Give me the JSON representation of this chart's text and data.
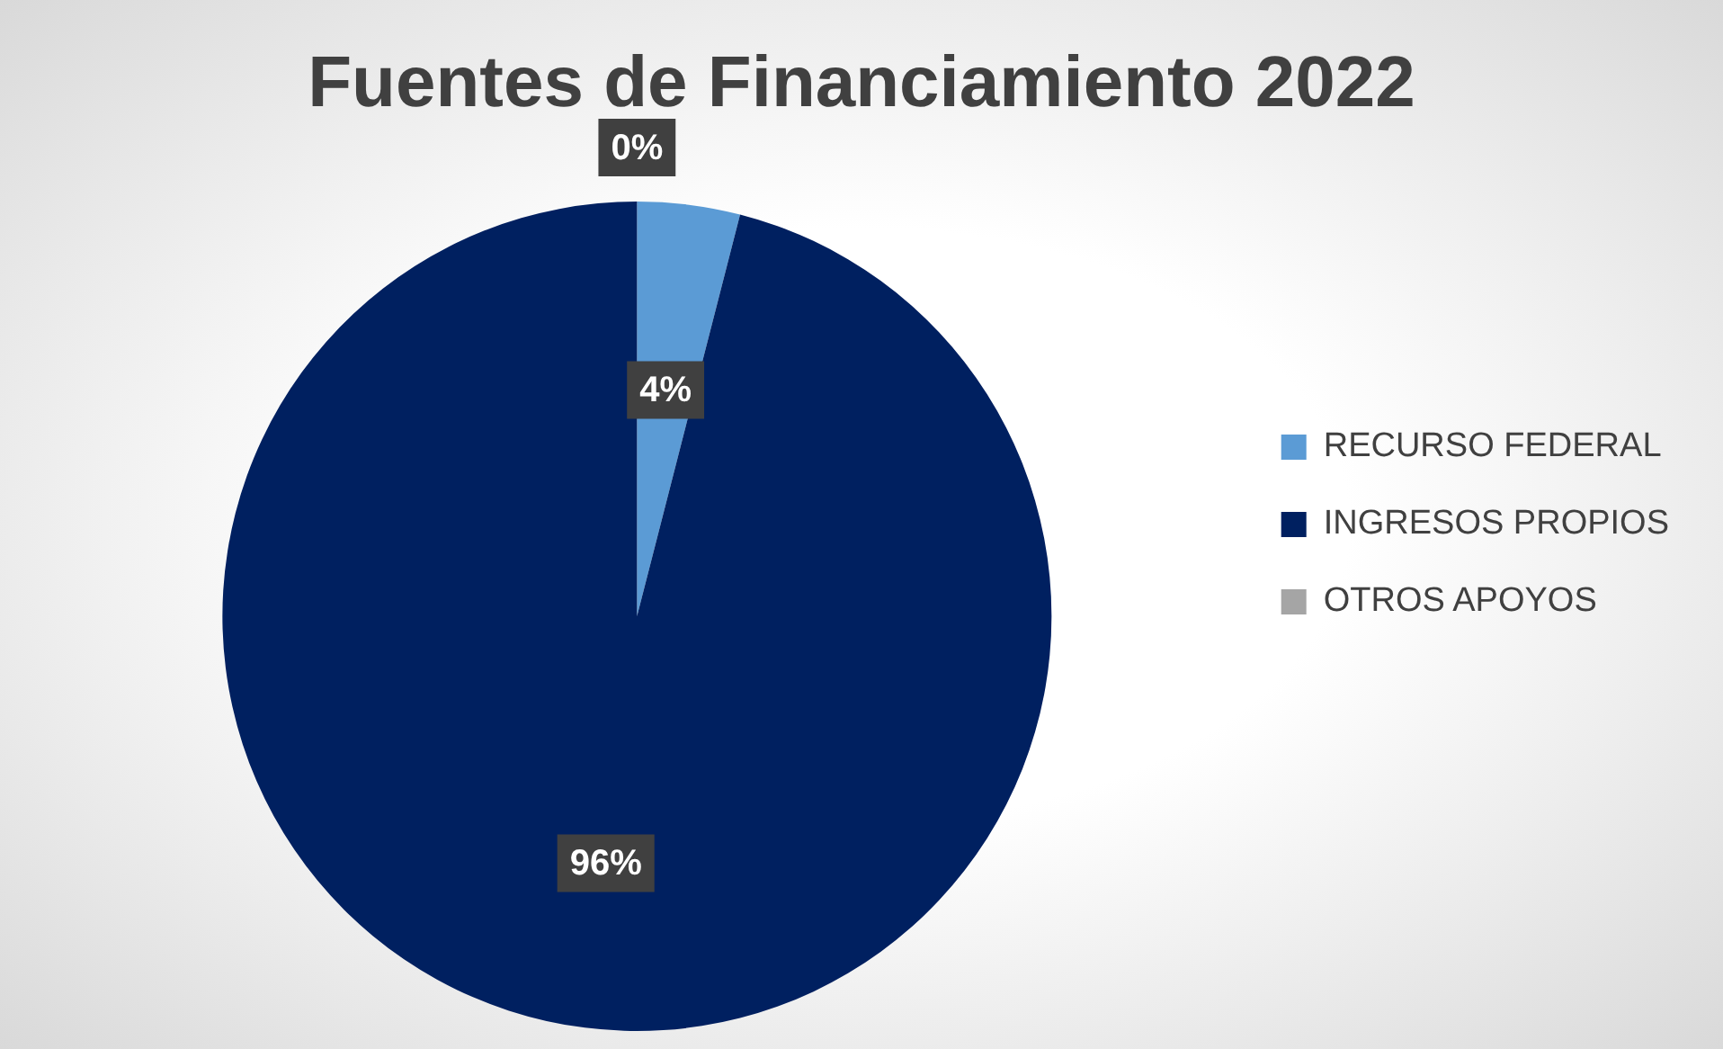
{
  "chart_data": {
    "type": "pie",
    "title": "Fuentes de Financiamiento 2022",
    "categories": [
      "RECURSO FEDERAL",
      "INGRESOS PROPIOS",
      "OTROS APOYOS"
    ],
    "values": [
      4,
      96,
      0
    ],
    "colors": [
      "#5b9bd5",
      "#002060",
      "#a5a5a5"
    ],
    "value_labels": [
      "4%",
      "96%",
      "0%"
    ],
    "legend": "right"
  }
}
